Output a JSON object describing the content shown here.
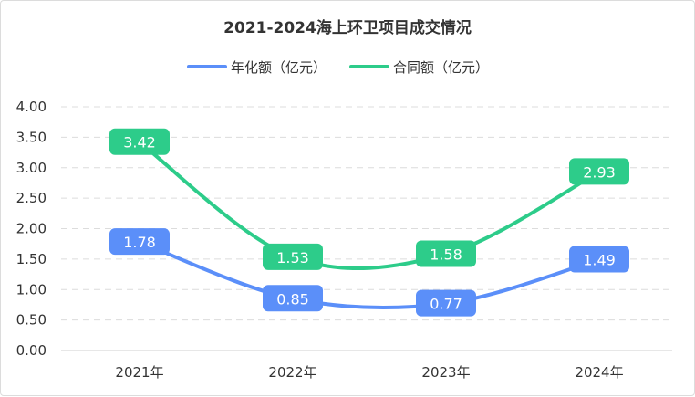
{
  "chart_data": {
    "type": "line",
    "title": "2021-2024海上环卫项目成交情况",
    "categories": [
      "2021年",
      "2022年",
      "2023年",
      "2024年"
    ],
    "ylim": [
      0,
      4
    ],
    "yticks": [
      "0.00",
      "0.50",
      "1.00",
      "1.50",
      "2.00",
      "2.50",
      "3.00",
      "3.50",
      "4.00"
    ],
    "grid": true,
    "legend_position": "top-center",
    "series": [
      {
        "name": "年化额（亿元）",
        "color": "#5b8ff9",
        "values": [
          1.78,
          0.85,
          0.77,
          1.49
        ],
        "labels": [
          "1.78",
          "0.85",
          "0.77",
          "1.49"
        ]
      },
      {
        "name": "合同额（亿元）",
        "color": "#2dcc8a",
        "values": [
          3.42,
          1.53,
          1.58,
          2.93
        ],
        "labels": [
          "3.42",
          "1.53",
          "1.58",
          "2.93"
        ]
      }
    ]
  }
}
